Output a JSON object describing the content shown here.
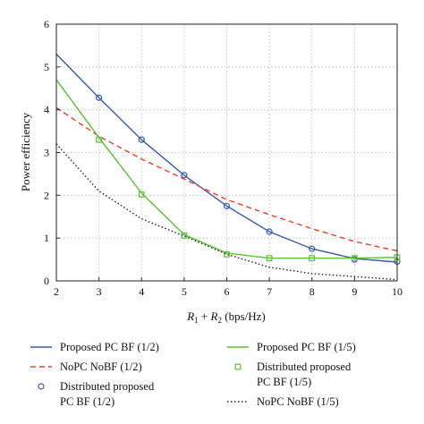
{
  "chart_data": {
    "type": "line",
    "xlabel": "R1 + R2 (bps/Hz)",
    "xlabel_parts": {
      "r1": "R",
      "sub1": "1",
      "plus": " + ",
      "r2": "R",
      "sub2": "2",
      "unit": " (bps/Hz)"
    },
    "ylabel": "Power efficiency",
    "xlim": [
      2,
      10
    ],
    "ylim": [
      0,
      6
    ],
    "xticks": [
      2,
      3,
      4,
      5,
      6,
      7,
      8,
      9,
      10
    ],
    "yticks": [
      0,
      1,
      2,
      3,
      4,
      5,
      6
    ],
    "grid": true,
    "legend_position": "bottom",
    "series": [
      {
        "name": "Proposed PC BF (1/2)",
        "style": "solid",
        "color": "#3a5ba8",
        "x": [
          2,
          3,
          4,
          5,
          6,
          7,
          8,
          9,
          10
        ],
        "values": [
          5.3,
          4.28,
          3.3,
          2.47,
          1.75,
          1.15,
          0.75,
          0.52,
          0.44
        ]
      },
      {
        "name": "NoPC NoBF (1/2)",
        "style": "dashed",
        "color": "#e8402a",
        "x": [
          2,
          3,
          4,
          5,
          6,
          7,
          8,
          9,
          10
        ],
        "values": [
          4.05,
          3.38,
          2.85,
          2.38,
          1.9,
          1.55,
          1.22,
          0.92,
          0.7
        ]
      },
      {
        "name": "Distributed proposed PC BF (1/2)",
        "style": "markers-circle",
        "color": "#3a5ba8",
        "x": [
          3,
          4,
          5,
          6,
          7,
          8,
          9,
          10
        ],
        "values": [
          4.28,
          3.3,
          2.47,
          1.75,
          1.15,
          0.75,
          0.5,
          0.45
        ]
      },
      {
        "name": "Proposed PC BF (1/5)",
        "style": "solid",
        "color": "#5bbf3a",
        "x": [
          2,
          3,
          4,
          5,
          6,
          7,
          8,
          9,
          10
        ],
        "values": [
          4.7,
          3.35,
          2.05,
          1.08,
          0.65,
          0.53,
          0.53,
          0.53,
          0.55
        ]
      },
      {
        "name": "Distributed proposed PC BF (1/5)",
        "style": "markers-square",
        "color": "#5bbf3a",
        "x": [
          3,
          4,
          5,
          6,
          7,
          8,
          9,
          10
        ],
        "values": [
          3.3,
          2.02,
          1.06,
          0.62,
          0.53,
          0.53,
          0.53,
          0.55
        ]
      },
      {
        "name": "NoPC NoBF (1/5)",
        "style": "dotted",
        "color": "#222222",
        "x": [
          2,
          3,
          4,
          5,
          6,
          7,
          8,
          9,
          10
        ],
        "values": [
          3.2,
          2.1,
          1.45,
          1.05,
          0.62,
          0.32,
          0.17,
          0.1,
          0.03
        ]
      }
    ],
    "legend": {
      "left": [
        {
          "series": 0,
          "lines": [
            "Proposed PC BF (1/2)"
          ]
        },
        {
          "series": 1,
          "lines": [
            "NoPC NoBF (1/2)"
          ]
        },
        {
          "series": 2,
          "lines": [
            "Distributed proposed",
            "PC BF (1/2)"
          ]
        }
      ],
      "right": [
        {
          "series": 3,
          "lines": [
            "Proposed PC BF (1/5)"
          ]
        },
        {
          "series": 4,
          "lines": [
            "Distributed proposed",
            "PC BF (1/5)"
          ]
        },
        {
          "series": 5,
          "lines": [
            "NoPC NoBF (1/5)"
          ]
        }
      ]
    }
  }
}
